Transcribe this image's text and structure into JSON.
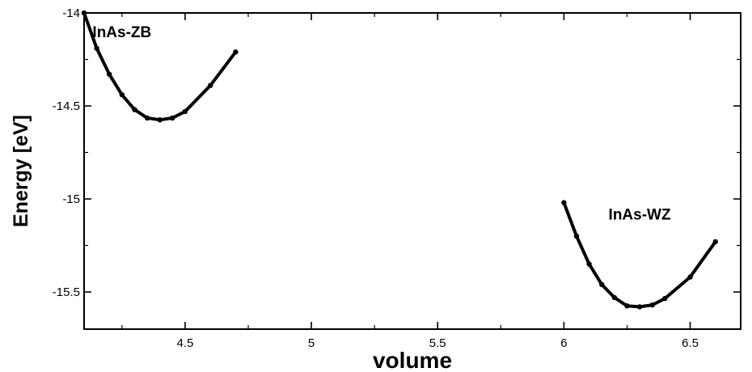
{
  "chart_data": {
    "type": "line",
    "title": "",
    "xlabel": "volume",
    "ylabel": "Energy [eV]",
    "xlim": [
      4.1,
      6.7
    ],
    "ylim": [
      -15.7,
      -14.0
    ],
    "xticks": [
      4.5,
      5,
      5.5,
      6,
      6.5
    ],
    "xtick_labels": [
      "4.5",
      "5",
      "5.5",
      "6",
      "6.5"
    ],
    "yticks": [
      -14,
      -14.5,
      -15,
      -15.5
    ],
    "ytick_labels": [
      "-14",
      "-14.5",
      "-15",
      "-15.5"
    ],
    "grid": false,
    "legend": "none",
    "line_color": "#000000",
    "series": [
      {
        "x": [
          4.1,
          4.15,
          4.2,
          4.25,
          4.3,
          4.35,
          4.4,
          4.45,
          4.5,
          4.6,
          4.7
        ],
        "y": [
          -14.0,
          -14.19,
          -14.33,
          -14.44,
          -14.52,
          -14.565,
          -14.575,
          -14.565,
          -14.53,
          -14.39,
          -14.21
        ]
      },
      {
        "x": [
          6.0,
          6.05,
          6.1,
          6.15,
          6.2,
          6.25,
          6.3,
          6.35,
          6.4,
          6.5,
          6.6
        ],
        "y": [
          -15.02,
          -15.2,
          -15.35,
          -15.46,
          -15.53,
          -15.575,
          -15.58,
          -15.57,
          -15.535,
          -15.42,
          -15.23
        ]
      }
    ],
    "annotations": [
      {
        "text": "InAs-ZB",
        "x": 4.25,
        "y": -14.13
      },
      {
        "text": "InAs-WZ",
        "x": 6.3,
        "y": -15.11
      }
    ]
  }
}
